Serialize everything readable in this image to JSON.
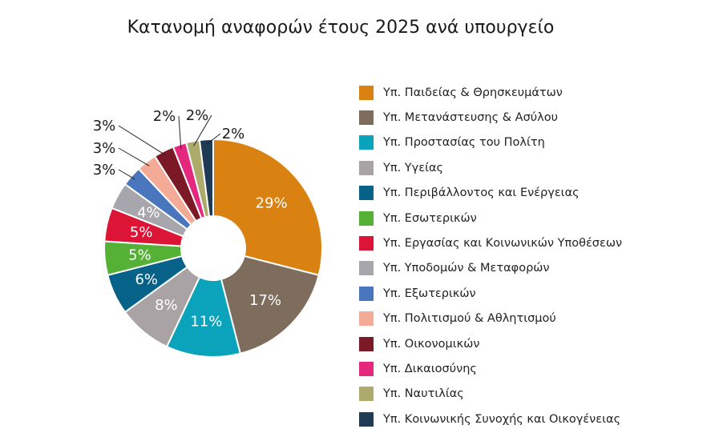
{
  "chart_data": {
    "type": "pie",
    "title": "Κατανομή αναφορών έτους 2025 ανά υπουργείο",
    "donut": true,
    "legend_position": "right",
    "series": [
      {
        "name": "Υπ. Παιδείας & Θρησκευμάτων",
        "value": 29,
        "label": "29%",
        "color": "#d98212"
      },
      {
        "name": "Υπ. Μετανάστευσης & Ασύλου",
        "value": 17,
        "label": "17%",
        "color": "#7e6c5c"
      },
      {
        "name": "Υπ. Προστασίας του Πολίτη",
        "value": 11,
        "label": "11%",
        "color": "#0aa3bb"
      },
      {
        "name": "Υπ. Υγείας",
        "value": 8,
        "label": "8%",
        "color": "#a9a3a5"
      },
      {
        "name": "Υπ. Περιβάλλοντος και Ενέργειας",
        "value": 6,
        "label": "6%",
        "color": "#07628a"
      },
      {
        "name": "Υπ. Εσωτερικών",
        "value": 5,
        "label": "5%",
        "color": "#55b135"
      },
      {
        "name": "Υπ. Εργασίας και Κοινωνικών Υποθέσεων",
        "value": 5,
        "label": "5%",
        "color": "#dc1435"
      },
      {
        "name": "Υπ. Υποδομών & Μεταφορών",
        "value": 4,
        "label": "4%",
        "color": "#a6a6ac"
      },
      {
        "name": "Υπ. Εξωτερικών",
        "value": 3,
        "label": "3%",
        "color": "#4a76bd"
      },
      {
        "name": "Υπ. Πολιτισμού & Αθλητισμού",
        "value": 3,
        "label": "3%",
        "color": "#f3ab97"
      },
      {
        "name": "Υπ. Οικονομικών",
        "value": 3,
        "label": "3%",
        "color": "#7b1a26"
      },
      {
        "name": "Υπ. Δικαιοσύνης",
        "value": 2,
        "label": "2%",
        "color": "#e3287d"
      },
      {
        "name": "Υπ. Ναυτιλίας",
        "value": 2,
        "label": "2%",
        "color": "#acab6b"
      },
      {
        "name": "Υπ. Κοινωνικής Συνοχής και Οικογένειας",
        "value": 2,
        "label": "2%",
        "color": "#1e3a55"
      }
    ]
  }
}
